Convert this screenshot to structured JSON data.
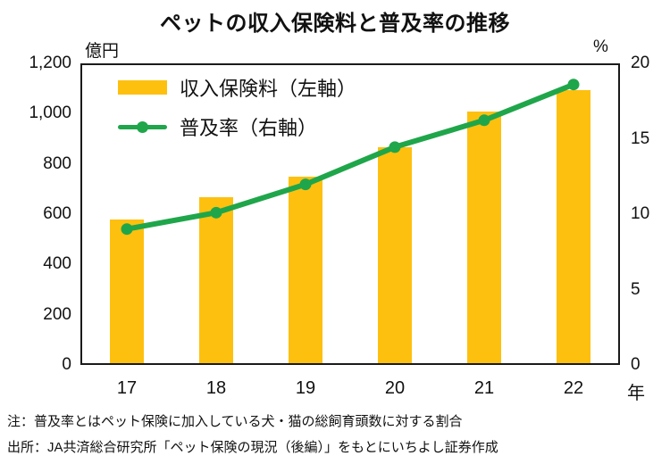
{
  "title": "ペットの収入保険料と普及率の推移",
  "axes": {
    "left_unit": "億円",
    "right_unit": "%",
    "x_unit": "年"
  },
  "legend": {
    "bar_label": "収入保険料（左軸）",
    "line_label": "普及率（右軸）"
  },
  "notes": {
    "note": "注：普及率とはペット保険に加入している犬・猫の総飼育頭数に対する割合",
    "source": "出所：JA共済総合研究所「ペット保険の現況（後編）」をもとにいちよし証券作成"
  },
  "colors": {
    "bar": "#FEC00F",
    "line": "#1FA64A",
    "axis_border": "#1a1a1a",
    "text": "#111111"
  },
  "chart_data": {
    "type": "bar",
    "subtype": "combo-bar-line-dual-axis",
    "title": "ペットの収入保険料と普及率の推移",
    "categories": [
      "17",
      "18",
      "19",
      "20",
      "21",
      "22"
    ],
    "series": [
      {
        "name": "収入保険料（左軸）",
        "type": "bar",
        "axis": "left",
        "values": [
          580,
          670,
          750,
          870,
          1015,
          1100
        ]
      },
      {
        "name": "普及率（右軸）",
        "type": "line",
        "axis": "right",
        "values": [
          9.0,
          10.1,
          12.0,
          14.5,
          16.3,
          18.7
        ]
      }
    ],
    "left_axis": {
      "label": "億円",
      "min": 0,
      "max": 1200,
      "ticks": [
        "1,200",
        "1,000",
        "800",
        "600",
        "400",
        "200",
        "0"
      ]
    },
    "right_axis": {
      "label": "%",
      "min": 0,
      "max": 20,
      "ticks": [
        "20",
        "15",
        "10",
        "5",
        "0"
      ]
    },
    "x_axis_suffix": "年",
    "grid": false,
    "legend_position": "inside-top-left"
  }
}
